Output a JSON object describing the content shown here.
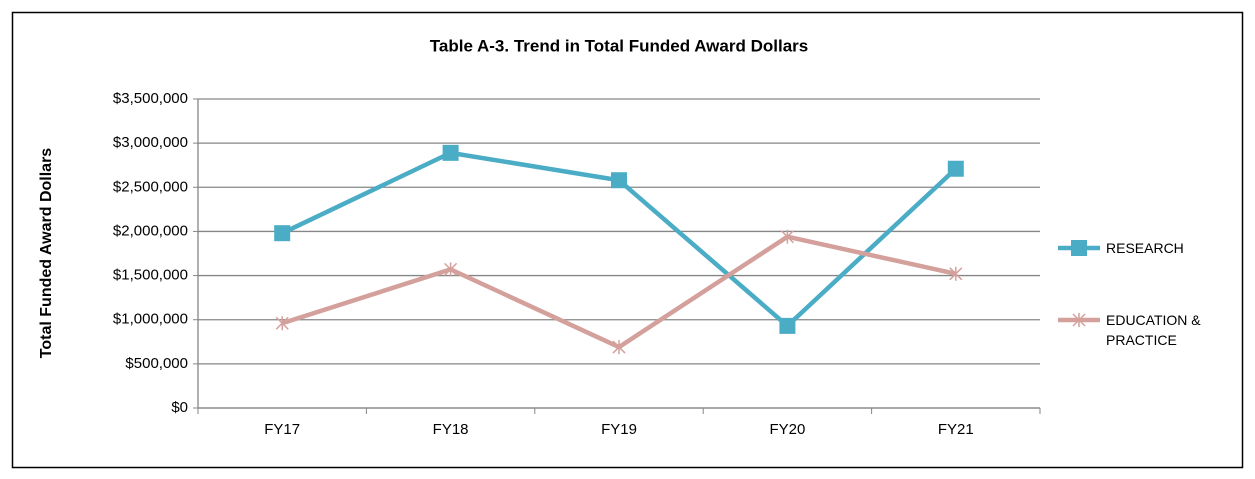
{
  "chart_data": {
    "type": "line",
    "title": "Table A-3.  Trend in Total Funded Award Dollars",
    "y_label": "Total Funded Award Dollars",
    "categories": [
      "FY17",
      "FY18",
      "FY19",
      "FY20",
      "FY21"
    ],
    "series": [
      {
        "name": "RESEARCH",
        "color": "#4bacc6",
        "marker": "square",
        "values": [
          1980000,
          2890000,
          2580000,
          930000,
          2710000
        ]
      },
      {
        "name": "EDUCATION & PRACTICE",
        "color": "#d4a09c",
        "marker": "asterisk",
        "values": [
          960000,
          1570000,
          690000,
          1940000,
          1520000
        ]
      }
    ],
    "ylim": [
      0,
      3500000
    ],
    "yticks": [
      {
        "value": 0,
        "label": "$0"
      },
      {
        "value": 500000,
        "label": "$500,000"
      },
      {
        "value": 1000000,
        "label": "$1,000,000"
      },
      {
        "value": 1500000,
        "label": "$1,500,000"
      },
      {
        "value": 2000000,
        "label": "$2,000,000"
      },
      {
        "value": 2500000,
        "label": "$2,500,000"
      },
      {
        "value": 3000000,
        "label": "$3,000,000"
      },
      {
        "value": 3500000,
        "label": "$3,500,000"
      }
    ],
    "grid": true,
    "legend": "right"
  }
}
